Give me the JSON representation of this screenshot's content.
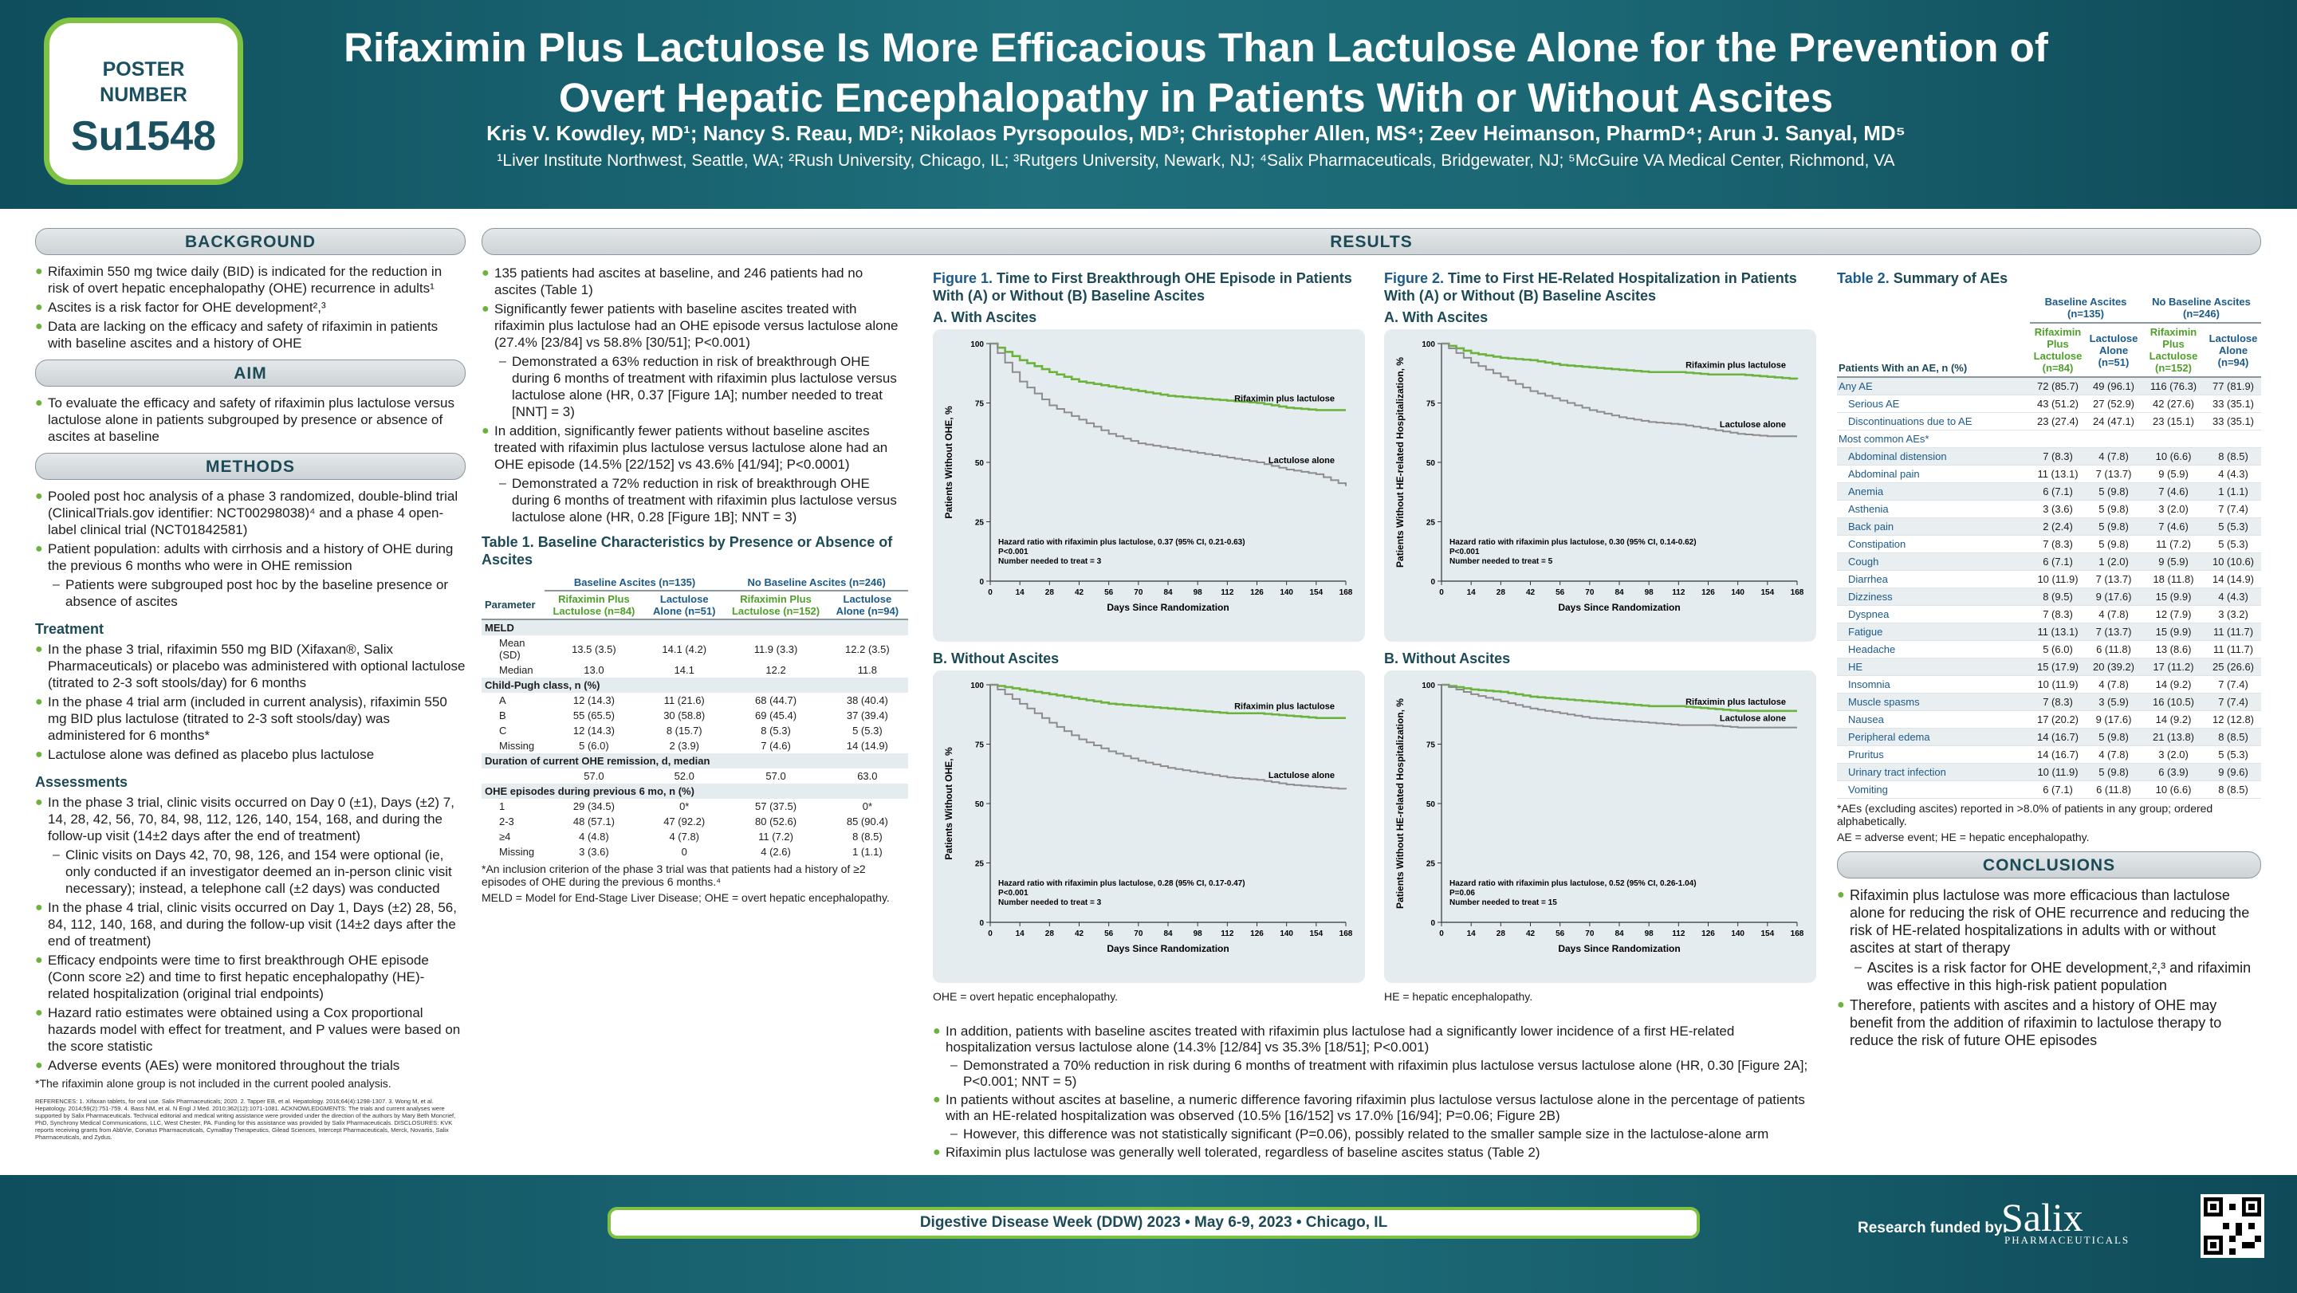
{
  "poster": {
    "label": "POSTER NUMBER",
    "number": "Su1548"
  },
  "title": "Rifaximin Plus Lactulose Is More Efficacious Than Lactulose Alone for the Prevention of Overt Hepatic Encephalopathy in Patients With or Without Ascites",
  "authors": "Kris V. Kowdley, MD¹; Nancy S. Reau, MD²; Nikolaos Pyrsopoulos, MD³; Christopher Allen, MS⁴; Zeev Heimanson, PharmD⁴; Arun J. Sanyal, MD⁵",
  "affiliations": "¹Liver Institute Northwest, Seattle, WA; ²Rush University, Chicago, IL; ³Rutgers University, Newark, NJ; ⁴Salix Pharmaceuticals, Bridgewater, NJ; ⁵McGuire VA Medical Center, Richmond, VA",
  "sections": {
    "background": "BACKGROUND",
    "aim": "AIM",
    "methods": "METHODS",
    "results": "RESULTS",
    "conclusions": "CONCLUSIONS"
  },
  "background": [
    "Rifaximin 550 mg twice daily (BID) is indicated for the reduction in risk of overt hepatic encephalopathy (OHE) recurrence in adults¹",
    "Ascites is a risk factor for OHE development²,³",
    "Data are lacking on the efficacy and safety of rifaximin in patients with baseline ascites and a history of OHE"
  ],
  "aim": [
    "To evaluate the efficacy and safety of rifaximin plus lactulose versus lactulose alone in patients subgrouped by presence or absence of ascites at baseline"
  ],
  "methods_intro": [
    "Pooled post hoc analysis of a phase 3 randomized, double-blind trial (ClinicalTrials.gov identifier: NCT00298038)⁴ and a phase 4 open-label clinical trial (NCT01842581)",
    "Patient population: adults with cirrhosis and a history of OHE during the previous 6 months who were in OHE remission"
  ],
  "methods_intro_dash": "Patients were subgrouped post hoc by the baseline presence or absence of ascites",
  "treatment_title": "Treatment",
  "treatment": [
    "In the phase 3 trial, rifaximin 550 mg BID (Xifaxan®, Salix Pharmaceuticals) or placebo was administered with optional lactulose (titrated to 2-3 soft stools/day) for 6 months",
    "In the phase 4 trial arm (included in current analysis), rifaximin 550 mg BID plus lactulose (titrated to 2-3 soft stools/day) was administered for 6 months*",
    "Lactulose alone was defined as placebo plus lactulose"
  ],
  "assessments_title": "Assessments",
  "assess1": "In the phase 3 trial, clinic visits occurred on Day 0 (±1), Days (±2) 7, 14, 28, 42, 56, 70, 84, 98, 112, 126, 140, 154, 168, and during the follow-up visit (14±2 days after the end of treatment)",
  "assess1_dash": "Clinic visits on Days 42, 70, 98, 126, and 154 were optional (ie, only conducted if an investigator deemed an in-person clinic visit necessary); instead, a telephone call (±2 days) was conducted",
  "assess_rest": [
    "In the phase 4 trial, clinic visits occurred on Day 1, Days (±2) 28, 56, 84, 112, 140, 168, and during the follow-up visit (14±2 days after the end of treatment)",
    "Efficacy endpoints were time to first breakthrough OHE episode (Conn score ≥2) and time to first hepatic encephalopathy (HE)-related hospitalization (original trial endpoints)",
    "Hazard ratio estimates were obtained using a Cox proportional hazards model with effect for treatment, and P values were based on the score statistic",
    "Adverse events (AEs) were monitored throughout the trials"
  ],
  "methods_footnote": "*The rifaximin alone group is not included in the current pooled analysis.",
  "references": "REFERENCES: 1. Xifaxan tablets, for oral use. Salix Pharmaceuticals; 2020. 2. Tapper EB, et al. Hepatology. 2016;64(4):1298-1307. 3. Wong M, et al. Hepatology. 2014;59(2):751-759. 4. Bass NM, et al. N Engl J Med. 2010;362(12):1071-1081. ACKNOWLEDGMENTS: The trials and current analyses were supported by Salix Pharmaceuticals. Technical editorial and medical writing assistance were provided under the direction of the authors by Mary Beth Moncrief, PhD, Synchrony Medical Communications, LLC, West Chester, PA. Funding for this assistance was provided by Salix Pharmaceuticals. DISCLOSURES: KVK reports receiving grants from AbbVie, Conatus Pharmaceuticals, CymaBay Therapeutics, Gilead Sciences, Intercept Pharmaceuticals, Merck, Novartis, Salix Pharmaceuticals, and Zydus.",
  "results_left": {
    "b1": "135 patients had ascites at baseline, and 246 patients had no ascites (Table 1)",
    "b2": "Significantly fewer patients with baseline ascites treated with rifaximin plus lactulose had an OHE episode versus lactulose alone (27.4% [23/84] vs 58.8% [30/51]; P<0.001)",
    "d2": "Demonstrated a 63% reduction in risk of breakthrough OHE during 6 months of treatment with rifaximin plus lactulose versus lactulose alone (HR, 0.37 [Figure 1A]; number needed to treat [NNT] = 3)",
    "b3": "In addition, significantly fewer patients without baseline ascites treated with rifaximin plus lactulose versus lactulose alone had an OHE episode (14.5% [22/152] vs 43.6% [41/94]; P<0.0001)",
    "d3": "Demonstrated a 72% reduction in risk of breakthrough OHE during 6 months of treatment with rifaximin plus lactulose versus lactulose alone (HR, 0.28 [Figure 1B]; NNT = 3)"
  },
  "table1": {
    "title": "Table 1. Baseline Characteristics by Presence or Absence of Ascites",
    "groups": [
      "Baseline Ascites (n=135)",
      "No Baseline Ascites (n=246)"
    ],
    "param": "Parameter",
    "cols": [
      "Rifaximin Plus Lactulose (n=84)",
      "Lactulose Alone (n=51)",
      "Rifaximin Plus Lactulose (n=152)",
      "Lactulose Alone (n=94)"
    ],
    "sections": [
      {
        "name": "MELD",
        "rows": [
          [
            "Mean (SD)",
            "13.5 (3.5)",
            "14.1 (4.2)",
            "11.9 (3.3)",
            "12.2 (3.5)"
          ],
          [
            "Median",
            "13.0",
            "14.1",
            "12.2",
            "11.8"
          ]
        ]
      },
      {
        "name": "Child-Pugh class, n (%)",
        "rows": [
          [
            "A",
            "12 (14.3)",
            "11 (21.6)",
            "68 (44.7)",
            "38 (40.4)"
          ],
          [
            "B",
            "55 (65.5)",
            "30 (58.8)",
            "69 (45.4)",
            "37 (39.4)"
          ],
          [
            "C",
            "12 (14.3)",
            "8 (15.7)",
            "8 (5.3)",
            "5 (5.3)"
          ],
          [
            "Missing",
            "5 (6.0)",
            "2 (3.9)",
            "7 (4.6)",
            "14 (14.9)"
          ]
        ]
      },
      {
        "name": "Duration of current OHE remission, d, median",
        "rows": [
          [
            "",
            "57.0",
            "52.0",
            "57.0",
            "63.0"
          ]
        ]
      },
      {
        "name": "OHE episodes during previous 6 mo, n (%)",
        "rows": [
          [
            "1",
            "29 (34.5)",
            "0*",
            "57 (37.5)",
            "0*"
          ],
          [
            "2-3",
            "48 (57.1)",
            "47 (92.2)",
            "80 (52.6)",
            "85 (90.4)"
          ],
          [
            "≥4",
            "4 (4.8)",
            "4 (7.8)",
            "11 (7.2)",
            "8 (8.5)"
          ],
          [
            "Missing",
            "3 (3.6)",
            "0",
            "4 (2.6)",
            "1 (1.1)"
          ]
        ]
      }
    ],
    "fn1": "*An inclusion criterion of the phase 3 trial was that patients had a history of ≥2 episodes of OHE during the previous 6 months.⁴",
    "fn2": "MELD = Model for End-Stage Liver Disease; OHE = overt hepatic encephalopathy."
  },
  "figure1": {
    "title_prefix": "Figure 1.",
    "title": "Time to First Breakthrough OHE Episode in Patients With (A) or Without (B) Baseline Ascites",
    "ylabel": "Patients Without OHE, %",
    "xlabel": "Days Since Randomization",
    "footnote": "OHE = overt hepatic encephalopathy."
  },
  "figure2": {
    "title_prefix": "Figure 2.",
    "title": "Time to First HE-Related Hospitalization in Patients With (A) or Without (B) Baseline Ascites",
    "ylabel": "Patients Without HE-related Hospitalization, %",
    "xlabel": "Days Since Randomization",
    "footnote": "HE = hepatic encephalopathy."
  },
  "panels": {
    "a": "A. With Ascites",
    "b": "B. Without Ascites"
  },
  "chart_data": [
    {
      "type": "line",
      "id": "fig1a",
      "x": [
        0,
        14,
        28,
        42,
        56,
        70,
        84,
        98,
        112,
        126,
        140,
        154,
        168
      ],
      "series": [
        {
          "name": "Rifaximin plus lactulose",
          "values": [
            100,
            93,
            88,
            84,
            82,
            80,
            78,
            77,
            76,
            75,
            73,
            72,
            72
          ]
        },
        {
          "name": "Lactulose alone",
          "values": [
            100,
            84,
            74,
            68,
            62,
            58,
            56,
            54,
            52,
            50,
            47,
            45,
            40
          ]
        }
      ],
      "ylim": [
        0,
        100
      ],
      "yticks": [
        0,
        25,
        50,
        75,
        100
      ],
      "annotation": [
        "Hazard ratio with rifaximin plus lactulose, 0.37 (95% CI, 0.21-0.63)",
        "P<0.001",
        "Number needed to treat = 3"
      ]
    },
    {
      "type": "line",
      "id": "fig2a",
      "x": [
        0,
        14,
        28,
        42,
        56,
        70,
        84,
        98,
        112,
        126,
        140,
        154,
        168
      ],
      "series": [
        {
          "name": "Rifaximin plus lactulose",
          "values": [
            100,
            96,
            94,
            93,
            91,
            90,
            89,
            88,
            88,
            87,
            87,
            86,
            85
          ]
        },
        {
          "name": "Lactulose alone",
          "values": [
            100,
            92,
            86,
            80,
            76,
            72,
            69,
            67,
            66,
            64,
            62,
            61,
            61
          ]
        }
      ],
      "ylim": [
        0,
        100
      ],
      "yticks": [
        0,
        25,
        50,
        75,
        100
      ],
      "annotation": [
        "Hazard ratio with rifaximin plus lactulose, 0.30 (95% CI, 0.14-0.62)",
        "P<0.001",
        "Number needed to treat = 5"
      ]
    },
    {
      "type": "line",
      "id": "fig1b",
      "x": [
        0,
        14,
        28,
        42,
        56,
        70,
        84,
        98,
        112,
        126,
        140,
        154,
        168
      ],
      "series": [
        {
          "name": "Rifaximin plus lactulose",
          "values": [
            100,
            98,
            96,
            94,
            92,
            91,
            90,
            89,
            88,
            88,
            87,
            86,
            86
          ]
        },
        {
          "name": "Lactulose alone",
          "values": [
            100,
            92,
            84,
            77,
            72,
            68,
            65,
            63,
            61,
            60,
            58,
            57,
            56
          ]
        }
      ],
      "ylim": [
        0,
        100
      ],
      "yticks": [
        0,
        25,
        50,
        75,
        100
      ],
      "annotation": [
        "Hazard ratio with rifaximin plus lactulose, 0.28 (95% CI, 0.17-0.47)",
        "P<0.001",
        "Number needed to treat = 3"
      ]
    },
    {
      "type": "line",
      "id": "fig2b",
      "x": [
        0,
        14,
        28,
        42,
        56,
        70,
        84,
        98,
        112,
        126,
        140,
        154,
        168
      ],
      "series": [
        {
          "name": "Rifaximin plus lactulose",
          "values": [
            100,
            98,
            97,
            95,
            94,
            93,
            92,
            91,
            91,
            90,
            89,
            89,
            89
          ]
        },
        {
          "name": "Lactulose alone",
          "values": [
            100,
            96,
            93,
            90,
            88,
            86,
            85,
            84,
            83,
            83,
            82,
            82,
            82
          ]
        }
      ],
      "ylim": [
        0,
        100
      ],
      "yticks": [
        0,
        25,
        50,
        75,
        100
      ],
      "annotation": [
        "Hazard ratio with rifaximin plus lactulose, 0.52 (95% CI, 0.26-1.04)",
        "P=0.06",
        "Number needed to treat = 15"
      ]
    }
  ],
  "results_bottom": {
    "b1": "In addition, patients with baseline ascites treated with rifaximin plus lactulose had a significantly lower incidence of a first HE-related hospitalization versus lactulose alone (14.3% [12/84] vs 35.3% [18/51]; P<0.001)",
    "d1": "Demonstrated a 70% reduction in risk during 6 months of treatment with rifaximin plus lactulose versus lactulose alone (HR, 0.30 [Figure 2A]; P<0.001; NNT = 5)",
    "b2": "In patients without ascites at baseline, a numeric difference favoring rifaximin plus lactulose versus lactulose alone in the percentage of patients with an HE-related hospitalization was observed (10.5% [16/152] vs 17.0% [16/94]; P=0.06; Figure 2B)",
    "d2": "However, this difference was not statistically significant (P=0.06), possibly related to the smaller sample size in the lactulose-alone arm",
    "b3": "Rifaximin plus lactulose was generally well tolerated, regardless of baseline ascites status (Table 2)"
  },
  "table2": {
    "title_prefix": "Table 2.",
    "title": "Summary of AEs",
    "groups": [
      "Baseline Ascites (n=135)",
      "No Baseline Ascites (n=246)"
    ],
    "cols": [
      "Rifaximin Plus Lactulose (n=84)",
      "Lactulose Alone (n=51)",
      "Rifaximin Plus Lactulose (n=152)",
      "Lactulose Alone (n=94)"
    ],
    "param": "Patients With an AE, n (%)",
    "top_rows": [
      [
        "Any AE",
        "72 (85.7)",
        "49 (96.1)",
        "116 (76.3)",
        "77 (81.9)"
      ],
      [
        "Serious AE",
        "43 (51.2)",
        "27 (52.9)",
        "42 (27.6)",
        "33 (35.1)"
      ],
      [
        "Discontinuations due to AE",
        "23 (27.4)",
        "24 (47.1)",
        "23 (15.1)",
        "33 (35.1)"
      ]
    ],
    "common_label": "Most common AEs*",
    "rows": [
      [
        "Abdominal distension",
        "7 (8.3)",
        "4 (7.8)",
        "10 (6.6)",
        "8 (8.5)"
      ],
      [
        "Abdominal pain",
        "11 (13.1)",
        "7 (13.7)",
        "9 (5.9)",
        "4 (4.3)"
      ],
      [
        "Anemia",
        "6 (7.1)",
        "5 (9.8)",
        "7 (4.6)",
        "1 (1.1)"
      ],
      [
        "Asthenia",
        "3 (3.6)",
        "5 (9.8)",
        "3 (2.0)",
        "7 (7.4)"
      ],
      [
        "Back pain",
        "2 (2.4)",
        "5 (9.8)",
        "7 (4.6)",
        "5 (5.3)"
      ],
      [
        "Constipation",
        "7 (8.3)",
        "5 (9.8)",
        "11 (7.2)",
        "5 (5.3)"
      ],
      [
        "Cough",
        "6 (7.1)",
        "1 (2.0)",
        "9 (5.9)",
        "10 (10.6)"
      ],
      [
        "Diarrhea",
        "10 (11.9)",
        "7 (13.7)",
        "18 (11.8)",
        "14 (14.9)"
      ],
      [
        "Dizziness",
        "8 (9.5)",
        "9 (17.6)",
        "15 (9.9)",
        "4 (4.3)"
      ],
      [
        "Dyspnea",
        "7 (8.3)",
        "4 (7.8)",
        "12 (7.9)",
        "3 (3.2)"
      ],
      [
        "Fatigue",
        "11 (13.1)",
        "7 (13.7)",
        "15 (9.9)",
        "11 (11.7)"
      ],
      [
        "Headache",
        "5 (6.0)",
        "6 (11.8)",
        "13 (8.6)",
        "11 (11.7)"
      ],
      [
        "HE",
        "15 (17.9)",
        "20 (39.2)",
        "17 (11.2)",
        "25 (26.6)"
      ],
      [
        "Insomnia",
        "10 (11.9)",
        "4 (7.8)",
        "14 (9.2)",
        "7 (7.4)"
      ],
      [
        "Muscle spasms",
        "7 (8.3)",
        "3 (5.9)",
        "16 (10.5)",
        "7 (7.4)"
      ],
      [
        "Nausea",
        "17 (20.2)",
        "9 (17.6)",
        "14 (9.2)",
        "12 (12.8)"
      ],
      [
        "Peripheral edema",
        "14 (16.7)",
        "5 (9.8)",
        "21 (13.8)",
        "8 (8.5)"
      ],
      [
        "Pruritus",
        "14 (16.7)",
        "4 (7.8)",
        "3 (2.0)",
        "5 (5.3)"
      ],
      [
        "Urinary tract infection",
        "10 (11.9)",
        "5 (9.8)",
        "6 (3.9)",
        "9 (9.6)"
      ],
      [
        "Vomiting",
        "6 (7.1)",
        "6 (11.8)",
        "10 (6.6)",
        "8 (8.5)"
      ]
    ],
    "fn1": "*AEs (excluding ascites) reported in >8.0% of patients in any group; ordered alphabetically.",
    "fn2": "AE = adverse event; HE = hepatic encephalopathy."
  },
  "conclusions": {
    "b1": "Rifaximin plus lactulose was more efficacious than lactulose alone for reducing the risk of OHE recurrence and reducing the risk of HE-related hospitalizations in adults with or without ascites at start of therapy",
    "d1": "Ascites is a risk factor for OHE development,²,³ and rifaximin was effective in this high-risk patient population",
    "b2": "Therefore, patients with ascites and a history of OHE may benefit from the addition of rifaximin to lactulose therapy to reduce the risk of future OHE episodes"
  },
  "footer": {
    "conference": "Digestive Disease Week (DDW) 2023 • May 6-9, 2023 • Chicago, IL",
    "funded": "Research funded by:",
    "brand": "Salix",
    "brand_sub": "PHARMACEUTICALS"
  },
  "colors": {
    "rifaximin": "#6cb33e",
    "lactulose": "#8c8c8c",
    "accent": "#1c4a56"
  }
}
